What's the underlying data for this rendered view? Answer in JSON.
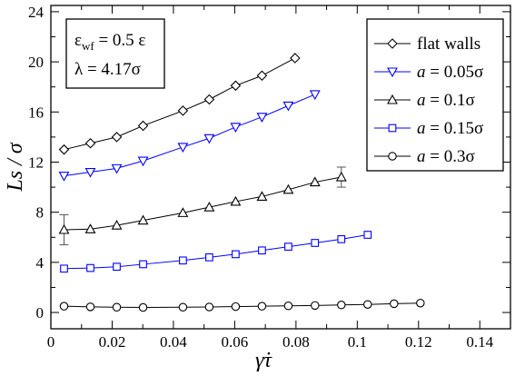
{
  "chart_data": {
    "type": "line",
    "xlabel": "γ̇τ",
    "ylabel": "Ls / σ",
    "xlim": [
      0,
      0.15
    ],
    "ylim": [
      -1.3,
      24.5
    ],
    "xticks": [
      0,
      0.02,
      0.04,
      0.06,
      0.08,
      0.1,
      0.12,
      0.14
    ],
    "xtick_labels": [
      "0",
      "0.02",
      "0.04",
      "0.06",
      "0.08",
      "0.1",
      "0.12",
      "0.14"
    ],
    "yticks": [
      0,
      4,
      8,
      12,
      16,
      20,
      24
    ],
    "ytick_labels": [
      "0",
      "4",
      "8",
      "12",
      "16",
      "20",
      "24"
    ],
    "grid": false,
    "legend_position": "top-right",
    "annotation": {
      "line1": {
        "sym": "ε",
        "sub": "wf",
        "rest": " = 0.5 ε"
      },
      "line2": "λ = 4.17σ"
    },
    "series": [
      {
        "name": "flat walls",
        "label_a": "",
        "label_b": "flat walls",
        "marker": "diamond",
        "color": "#000000",
        "x": [
          0.0043,
          0.0129,
          0.0215,
          0.0301,
          0.0431,
          0.0517,
          0.0603,
          0.0689,
          0.0797
        ],
        "y": [
          13.0,
          13.5,
          14.0,
          14.9,
          16.1,
          17.0,
          18.1,
          18.9,
          20.3
        ]
      },
      {
        "name": "a = 0.05σ",
        "label_a": "a",
        "label_b": " = 0.05σ",
        "marker": "triangle-down",
        "color": "#0000ff",
        "x": [
          0.0043,
          0.0129,
          0.0215,
          0.0301,
          0.0431,
          0.0517,
          0.0603,
          0.0689,
          0.0775,
          0.0862
        ],
        "y": [
          10.9,
          11.2,
          11.5,
          12.1,
          13.2,
          13.9,
          14.8,
          15.6,
          16.5,
          17.4
        ]
      },
      {
        "name": "a = 0.1σ",
        "label_a": "a",
        "label_b": " = 0.1σ",
        "marker": "triangle-up",
        "color": "#000000",
        "x": [
          0.0043,
          0.0129,
          0.0215,
          0.0301,
          0.0431,
          0.0517,
          0.0603,
          0.0689,
          0.0775,
          0.0862,
          0.0948
        ],
        "y": [
          6.6,
          6.65,
          6.95,
          7.35,
          7.95,
          8.4,
          8.85,
          9.25,
          9.8,
          10.4,
          10.8
        ],
        "error_bars": [
          {
            "x": 0.0043,
            "low": 5.4,
            "high": 7.8
          },
          {
            "x": 0.0948,
            "low": 10.0,
            "high": 11.6
          }
        ]
      },
      {
        "name": "a = 0.15σ",
        "label_a": "a",
        "label_b": " = 0.15σ",
        "marker": "square",
        "color": "#0000ff",
        "x": [
          0.0043,
          0.0129,
          0.0215,
          0.0301,
          0.0431,
          0.0517,
          0.0603,
          0.0689,
          0.0775,
          0.0862,
          0.0948,
          0.1034
        ],
        "y": [
          3.5,
          3.55,
          3.65,
          3.85,
          4.15,
          4.4,
          4.65,
          4.95,
          5.25,
          5.55,
          5.85,
          6.2
        ]
      },
      {
        "name": "a = 0.3σ",
        "label_a": "a",
        "label_b": " = 0.3σ",
        "marker": "circle",
        "color": "#000000",
        "x": [
          0.0043,
          0.0129,
          0.0215,
          0.0301,
          0.0431,
          0.0517,
          0.0603,
          0.0689,
          0.0775,
          0.0862,
          0.0948,
          0.1034,
          0.112,
          0.1206
        ],
        "y": [
          0.5,
          0.45,
          0.42,
          0.4,
          0.42,
          0.44,
          0.47,
          0.5,
          0.53,
          0.56,
          0.6,
          0.64,
          0.7,
          0.75
        ]
      }
    ]
  }
}
